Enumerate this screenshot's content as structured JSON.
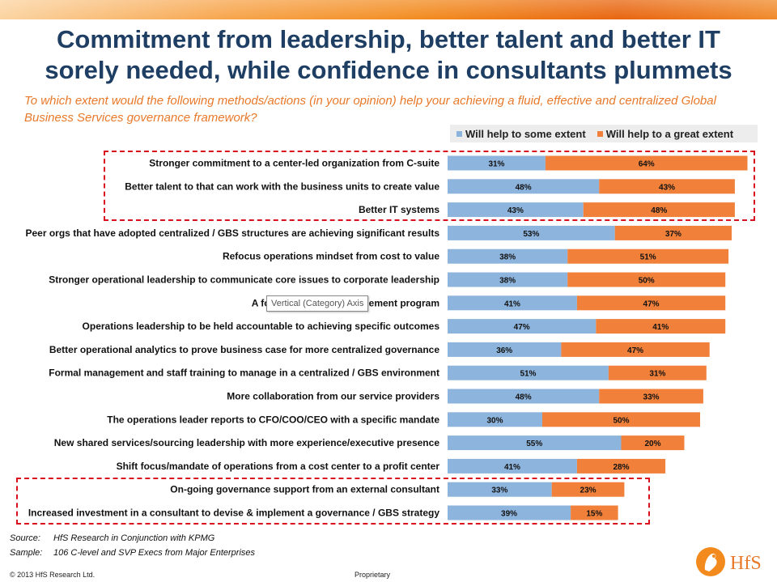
{
  "title_line1": "Commitment from leadership, better talent and better IT",
  "title_line2": "sorely needed, while confidence in consultants plummets",
  "question": "To which extent would the following methods/actions (in your opinion) help your achieving a fluid, effective and centralized Global Business Services governance framework?",
  "tooltip": "Vertical (Category) Axis",
  "source_label": "Source:",
  "source_value": "HfS Research in Conjunction with KPMG",
  "sample_label": "Sample:",
  "sample_value": "106 C-level and SVP Execs from Major Enterprises",
  "copyright": "© 2013 HfS Research Ltd.",
  "proprietary": "Proprietary",
  "logo_text": "HfS",
  "colors": {
    "some": "#8db4dc",
    "great": "#f0803a",
    "highlight": "#d9111e",
    "title": "#1f3e63",
    "question": "#e8792a"
  },
  "chart_data": {
    "type": "bar",
    "orientation": "horizontal",
    "stacked": true,
    "unit": "%",
    "legend_position": "top-right",
    "categories": [
      "Stronger commitment to a center-led organization from C-suite",
      "Better talent to that can work with the business units to create value",
      "Better IT systems",
      "Peer orgs that have adopted centralized / GBS structures are achieving significant results",
      "Refocus operations mindset from cost to value",
      "Stronger operational leadership to communicate core issues to corporate leadership",
      "A focused change management program",
      "Operations leadership to be  held accountable to achieving specific outcomes",
      "Better operational analytics to prove business case for more centralized governance",
      "Formal management and staff training to manage in a centralized / GBS environment",
      "More collaboration from our service providers",
      "The operations leader reports to CFO/COO/CEO with a specific mandate",
      "New shared services/sourcing leadership with more experience/executive presence",
      "Shift focus/mandate of operations from a cost center to a profit center",
      "On-going governance support from an external consultant ",
      "Increased investment in a consultant to devise & implement a governance / GBS strategy"
    ],
    "series": [
      {
        "name": "Will help to some extent",
        "values": [
          31,
          48,
          43,
          53,
          38,
          38,
          41,
          47,
          36,
          51,
          48,
          30,
          55,
          41,
          33,
          39
        ]
      },
      {
        "name": "Will help to a great extent",
        "values": [
          64,
          43,
          48,
          37,
          51,
          50,
          47,
          41,
          47,
          31,
          33,
          50,
          20,
          28,
          23,
          15
        ]
      }
    ],
    "highlighted_groups": [
      [
        0,
        2
      ],
      [
        14,
        15
      ]
    ]
  }
}
